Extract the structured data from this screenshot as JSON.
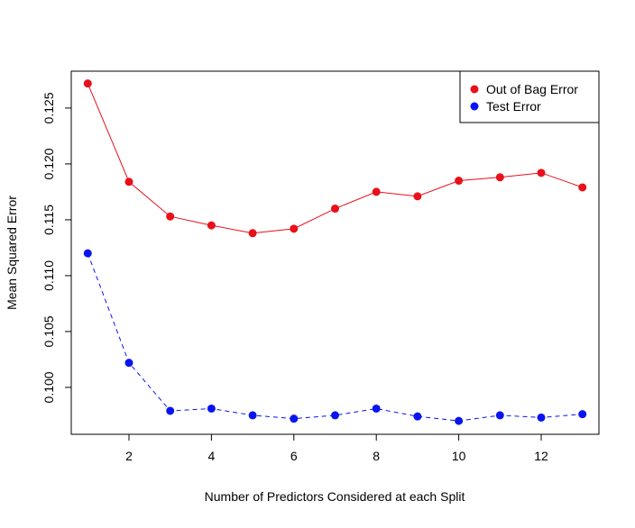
{
  "chart_data": {
    "type": "line",
    "xlabel": "Number of Predictors Considered at each Split",
    "ylabel": "Mean Squared Error",
    "xlim": [
      0.6,
      13.4
    ],
    "ylim": [
      0.0958,
      0.1283
    ],
    "x_ticks": [
      2,
      4,
      6,
      8,
      10,
      12
    ],
    "x_tick_labels": [
      "2",
      "4",
      "6",
      "8",
      "10",
      "12"
    ],
    "y_ticks": [
      0.1,
      0.105,
      0.11,
      0.115,
      0.12,
      0.125
    ],
    "y_tick_labels": [
      "0.100",
      "0.105",
      "0.110",
      "0.115",
      "0.120",
      "0.125"
    ],
    "grid": false,
    "legend_position": "top-right",
    "x": [
      1,
      2,
      3,
      4,
      5,
      6,
      7,
      8,
      9,
      10,
      11,
      12,
      13
    ],
    "series": [
      {
        "name": "Out of Bag Error",
        "color": "#e8101a",
        "line_style": "solid",
        "values": [
          0.1272,
          0.1184,
          0.1153,
          0.1145,
          0.1138,
          0.1142,
          0.116,
          0.1175,
          0.1171,
          0.1185,
          0.1188,
          0.1192,
          0.1179
        ]
      },
      {
        "name": "Test Error",
        "color": "#0a14f0",
        "line_style": "dashed",
        "values": [
          0.112,
          0.1022,
          0.0979,
          0.0981,
          0.0975,
          0.0972,
          0.0975,
          0.0981,
          0.0974,
          0.097,
          0.0975,
          0.0973,
          0.0976
        ]
      }
    ]
  }
}
